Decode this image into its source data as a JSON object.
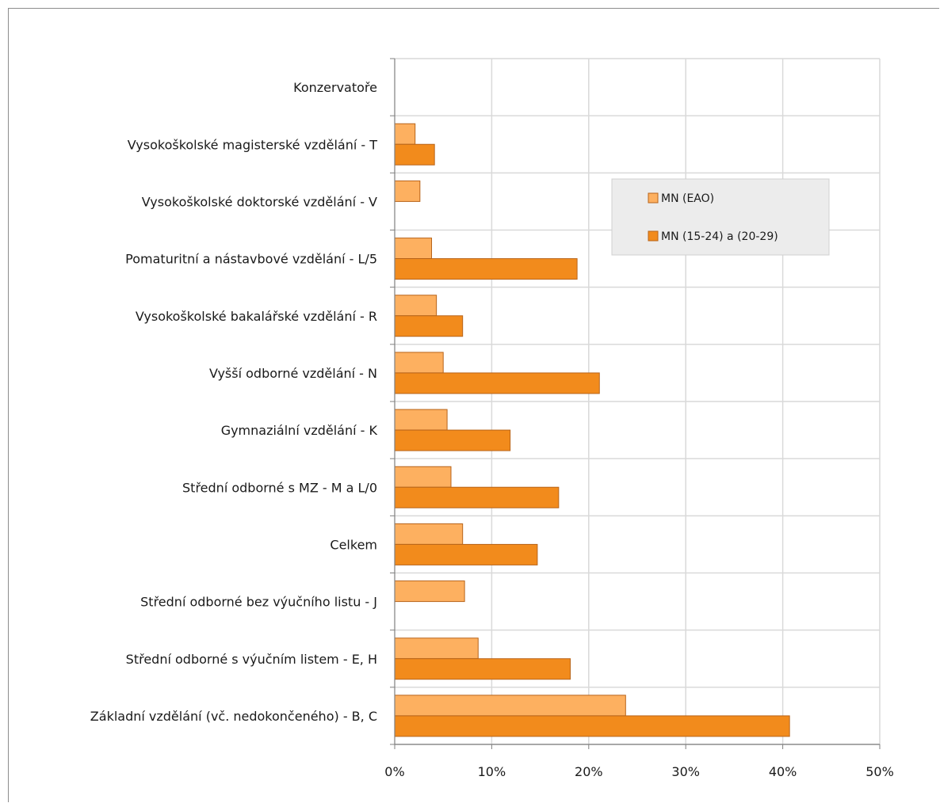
{
  "chart_data": {
    "type": "bar",
    "orientation": "horizontal",
    "categories": [
      "Konzervatoře",
      "Vysokoškolské magisterské vzdělání - T",
      "Vysokoškolské doktorské vzdělání - V",
      "Pomaturitní a nástavbové vzdělání - L/5",
      "Vysokoškolské bakalářské vzdělání - R",
      "Vyšší odborné vzdělání - N",
      "Gymnaziální vzdělání - K",
      "Střední odborné s MZ - M a L/0",
      "Celkem",
      "Střední odborné bez výučního listu - J",
      "Střední odborné s výučním listem - E, H",
      "Základní vzdělání (vč. nedokončeného) - B, C"
    ],
    "series": [
      {
        "name": "MN (EAO)",
        "color": "#FDB060",
        "values": [
          null,
          2.1,
          2.6,
          3.8,
          4.3,
          5.0,
          5.4,
          5.8,
          7.0,
          7.2,
          8.6,
          23.8
        ]
      },
      {
        "name": "MN (15-24) a (20-29)",
        "color": "#F28B1C",
        "values": [
          null,
          4.1,
          null,
          18.8,
          7.0,
          21.1,
          11.9,
          16.9,
          14.7,
          null,
          18.1,
          40.7
        ]
      }
    ],
    "xlim": [
      0,
      50
    ],
    "xticks": [
      0,
      10,
      20,
      30,
      40,
      50
    ],
    "tick_suffix": "%",
    "title": "",
    "xlabel": "",
    "ylabel": "",
    "grid": true,
    "legend_position": "top-right",
    "colors": {
      "grid": "#d9d9d9",
      "axis": "#808080",
      "bar_edge": "#b8641a",
      "legend_bg": "#ececec"
    }
  }
}
